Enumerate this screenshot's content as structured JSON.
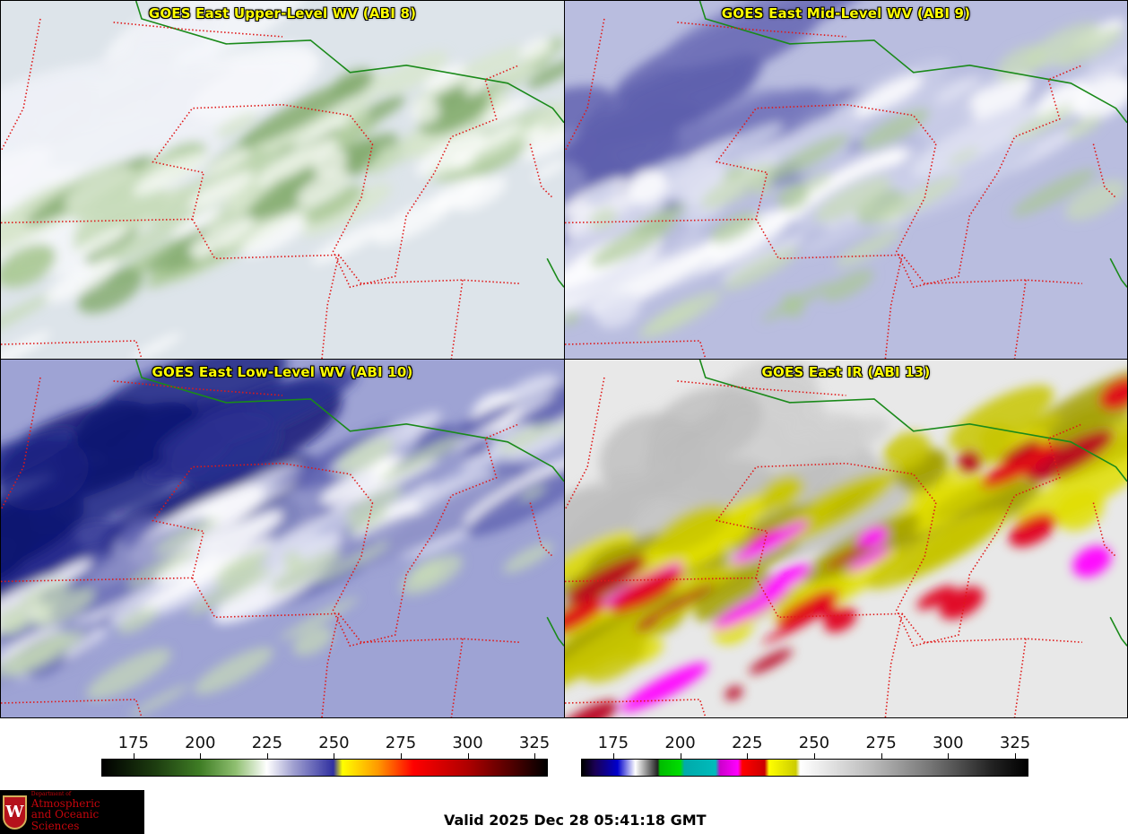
{
  "panels": [
    {
      "title": "GOES East Upper-Level WV (ABI 8)",
      "scheme": "upper"
    },
    {
      "title": "GOES East Mid-Level WV (ABI 9)",
      "scheme": "mid"
    },
    {
      "title": "GOES East Low-Level WV (ABI 10)",
      "scheme": "low"
    },
    {
      "title": "GOES East IR (ABI 13)",
      "scheme": "ir"
    }
  ],
  "colorbars": {
    "wv": {
      "ticks": [
        175,
        200,
        225,
        250,
        275,
        300,
        325
      ],
      "range": [
        163,
        330
      ]
    },
    "ir": {
      "ticks": [
        175,
        200,
        225,
        250,
        275,
        300,
        325
      ],
      "range": [
        163,
        330
      ]
    }
  },
  "colors": {
    "border_state": "#e01818",
    "border_country": "#1a8a1a",
    "title_text": "#ffff00"
  },
  "logo": {
    "crest_letter": "W",
    "dept": "Department of",
    "line1": "Atmospheric",
    "line2": "and Oceanic Sciences"
  },
  "valid_text": "Valid 2025 Dec 28 05:41:18 GMT"
}
